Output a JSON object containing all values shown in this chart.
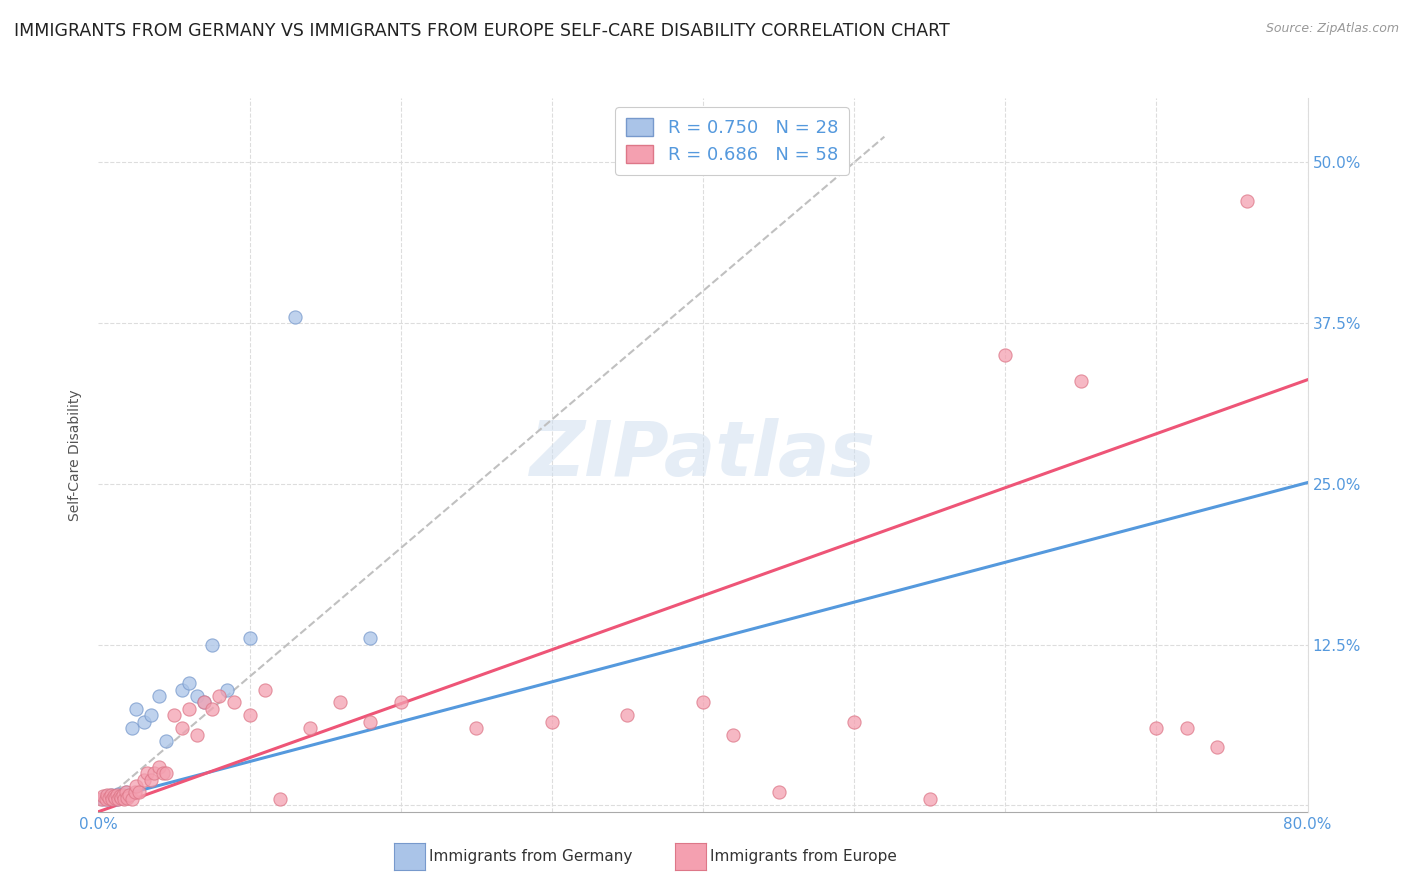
{
  "title": "IMMIGRANTS FROM GERMANY VS IMMIGRANTS FROM EUROPE SELF-CARE DISABILITY CORRELATION CHART",
  "source": "Source: ZipAtlas.com",
  "ylabel": "Self-Care Disability",
  "xlim": [
    0.0,
    0.8
  ],
  "ylim": [
    -0.005,
    0.55
  ],
  "xticks": [
    0.0,
    0.1,
    0.2,
    0.3,
    0.4,
    0.5,
    0.6,
    0.7,
    0.8
  ],
  "xticklabels": [
    "0.0%",
    "",
    "",
    "",
    "",
    "",
    "",
    "",
    "80.0%"
  ],
  "yticks": [
    0.0,
    0.125,
    0.25,
    0.375,
    0.5
  ],
  "yticklabels": [
    "",
    "12.5%",
    "25.0%",
    "37.5%",
    "50.0%"
  ],
  "grid_color": "#dddddd",
  "background_color": "#ffffff",
  "series1_label": "Immigrants from Germany",
  "series1_color": "#aac4e8",
  "series1_edge_color": "#7799cc",
  "series1_R": "0.750",
  "series1_N": "28",
  "series2_label": "Immigrants from Europe",
  "series2_color": "#f4a0b0",
  "series2_edge_color": "#dd7788",
  "series2_R": "0.686",
  "series2_N": "58",
  "series1_line_color": "#5599dd",
  "series2_line_color": "#ee5577",
  "legend_text_color": "#5599dd",
  "watermark": "ZIPatlas",
  "series1_scatter_x": [
    0.003,
    0.005,
    0.006,
    0.008,
    0.009,
    0.01,
    0.012,
    0.013,
    0.014,
    0.015,
    0.017,
    0.018,
    0.02,
    0.022,
    0.025,
    0.03,
    0.035,
    0.04,
    0.045,
    0.055,
    0.06,
    0.065,
    0.07,
    0.075,
    0.085,
    0.1,
    0.13,
    0.18
  ],
  "series1_scatter_y": [
    0.005,
    0.007,
    0.005,
    0.008,
    0.006,
    0.007,
    0.005,
    0.009,
    0.006,
    0.008,
    0.007,
    0.01,
    0.008,
    0.06,
    0.075,
    0.065,
    0.07,
    0.085,
    0.05,
    0.09,
    0.095,
    0.085,
    0.08,
    0.125,
    0.09,
    0.13,
    0.38,
    0.13
  ],
  "series2_scatter_x": [
    0.002,
    0.003,
    0.005,
    0.006,
    0.007,
    0.008,
    0.009,
    0.01,
    0.011,
    0.012,
    0.013,
    0.014,
    0.015,
    0.016,
    0.017,
    0.018,
    0.019,
    0.02,
    0.022,
    0.024,
    0.025,
    0.027,
    0.03,
    0.032,
    0.035,
    0.037,
    0.04,
    0.043,
    0.045,
    0.05,
    0.055,
    0.06,
    0.065,
    0.07,
    0.075,
    0.08,
    0.09,
    0.1,
    0.11,
    0.12,
    0.14,
    0.16,
    0.18,
    0.2,
    0.25,
    0.3,
    0.35,
    0.4,
    0.42,
    0.45,
    0.5,
    0.55,
    0.6,
    0.65,
    0.7,
    0.72,
    0.74,
    0.76
  ],
  "series2_scatter_y": [
    0.005,
    0.007,
    0.005,
    0.008,
    0.006,
    0.008,
    0.005,
    0.007,
    0.006,
    0.008,
    0.005,
    0.007,
    0.006,
    0.008,
    0.005,
    0.01,
    0.006,
    0.008,
    0.005,
    0.01,
    0.015,
    0.01,
    0.02,
    0.025,
    0.02,
    0.025,
    0.03,
    0.025,
    0.025,
    0.07,
    0.06,
    0.075,
    0.055,
    0.08,
    0.075,
    0.085,
    0.08,
    0.07,
    0.09,
    0.005,
    0.06,
    0.08,
    0.065,
    0.08,
    0.06,
    0.065,
    0.07,
    0.08,
    0.055,
    0.01,
    0.065,
    0.005,
    0.35,
    0.33,
    0.06,
    0.06,
    0.045,
    0.47
  ],
  "series1_line_slope": 0.31,
  "series1_line_intercept": 0.003,
  "series2_line_slope": 0.42,
  "series2_line_intercept": -0.005,
  "dashed_line_color": "#c0c0c0",
  "title_fontsize": 12.5,
  "axis_label_fontsize": 10,
  "tick_fontsize": 11,
  "tick_color": "#5599dd"
}
